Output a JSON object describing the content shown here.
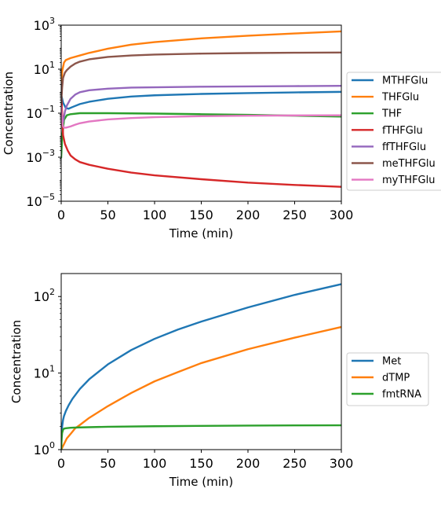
{
  "chart_data": [
    {
      "type": "line",
      "yscale": "log",
      "xlabel": "Time (min)",
      "ylabel": "Concentration",
      "xlim": [
        0,
        300
      ],
      "ylim_exp": [
        -5,
        3
      ],
      "xticks": [
        0,
        50,
        100,
        150,
        200,
        250,
        300
      ],
      "yticks_exp": [
        -5,
        -3,
        -1,
        1,
        3
      ],
      "grid": false,
      "legend_position": "outside-right",
      "series": [
        {
          "name": "MTHFGlu",
          "color": "#1f77b4",
          "x": [
            0,
            2,
            5,
            8,
            12,
            20,
            30,
            50,
            75,
            100,
            150,
            200,
            250,
            300
          ],
          "y": [
            0.7,
            0.3,
            0.17,
            0.16,
            0.19,
            0.26,
            0.33,
            0.45,
            0.57,
            0.65,
            0.75,
            0.82,
            0.88,
            0.93
          ]
        },
        {
          "name": "THFGlu",
          "color": "#ff7f0e",
          "x": [
            0,
            1,
            3,
            5,
            10,
            20,
            30,
            50,
            75,
            100,
            150,
            200,
            250,
            300
          ],
          "y": [
            1.0,
            8,
            20,
            26,
            32,
            42,
            55,
            85,
            130,
            170,
            250,
            330,
            420,
            520
          ]
        },
        {
          "name": "THF",
          "color": "#2ca02c",
          "x": [
            0,
            1,
            3,
            6,
            10,
            20,
            30,
            50,
            100,
            150,
            200,
            250,
            300
          ],
          "y": [
            0.001,
            0.008,
            0.05,
            0.08,
            0.09,
            0.1,
            0.1,
            0.1,
            0.096,
            0.09,
            0.084,
            0.077,
            0.07
          ]
        },
        {
          "name": "fTHFGlu",
          "color": "#d62728",
          "x": [
            0,
            1,
            2,
            4,
            7,
            10,
            15,
            20,
            30,
            50,
            75,
            100,
            150,
            200,
            250,
            300
          ],
          "y": [
            1.0,
            0.1,
            0.01,
            0.004,
            0.002,
            0.0012,
            0.0008,
            0.0006,
            0.00045,
            0.0003,
            0.0002,
            0.00015,
            0.0001,
            7e-05,
            5.5e-05,
            4.5e-05
          ]
        },
        {
          "name": "ffTHFGlu",
          "color": "#9467bd",
          "x": [
            0,
            2,
            4,
            6,
            10,
            15,
            20,
            30,
            50,
            75,
            100,
            150,
            200,
            250,
            300
          ],
          "y": [
            0.1,
            0.04,
            0.12,
            0.22,
            0.45,
            0.7,
            0.9,
            1.1,
            1.3,
            1.45,
            1.5,
            1.6,
            1.65,
            1.7,
            1.75
          ]
        },
        {
          "name": "meTHFGlu",
          "color": "#8c564b",
          "x": [
            0,
            1,
            2,
            4,
            6,
            10,
            15,
            20,
            30,
            50,
            75,
            100,
            150,
            200,
            250,
            300
          ],
          "y": [
            0.3,
            1.5,
            4,
            7,
            9,
            13,
            18,
            22,
            28,
            36,
            42,
            46,
            51,
            54,
            56,
            57
          ]
        },
        {
          "name": "myTHFGlu",
          "color": "#e377c2",
          "x": [
            0,
            1,
            2,
            3,
            5,
            10,
            15,
            20,
            30,
            50,
            75,
            100,
            150,
            200,
            250,
            300
          ],
          "y": [
            0.2,
            0.05,
            0.025,
            0.022,
            0.022,
            0.025,
            0.03,
            0.035,
            0.042,
            0.052,
            0.06,
            0.066,
            0.073,
            0.077,
            0.079,
            0.08
          ]
        }
      ]
    },
    {
      "type": "line",
      "yscale": "log",
      "xlabel": "Time (min)",
      "ylabel": "Concentration",
      "xlim": [
        0,
        300
      ],
      "ylim_exp": [
        0,
        2.3
      ],
      "xticks": [
        0,
        50,
        100,
        150,
        200,
        250,
        300
      ],
      "yticks_exp": [
        0,
        1,
        2
      ],
      "grid": false,
      "legend_position": "outside-right",
      "series": [
        {
          "name": "Met",
          "color": "#1f77b4",
          "x": [
            0,
            0.5,
            1,
            2,
            3,
            5,
            8,
            12,
            20,
            30,
            50,
            75,
            100,
            125,
            150,
            200,
            250,
            300
          ],
          "y": [
            1.0,
            1.6,
            2.0,
            2.45,
            2.75,
            3.2,
            3.8,
            4.6,
            6.2,
            8.3,
            13,
            20,
            28,
            37,
            47,
            72,
            105,
            145
          ]
        },
        {
          "name": "dTMP",
          "color": "#ff7f0e",
          "x": [
            0,
            3,
            6,
            10,
            15,
            20,
            30,
            50,
            75,
            100,
            125,
            150,
            200,
            250,
            300
          ],
          "y": [
            1.0,
            1.18,
            1.4,
            1.6,
            1.9,
            2.1,
            2.6,
            3.7,
            5.5,
            7.8,
            10.3,
            13.5,
            20.5,
            29,
            40
          ]
        },
        {
          "name": "fmtRNA",
          "color": "#2ca02c",
          "x": [
            0,
            0.5,
            1,
            2,
            3,
            5,
            10,
            20,
            50,
            100,
            150,
            200,
            250,
            300
          ],
          "y": [
            1.0,
            1.4,
            1.65,
            1.82,
            1.88,
            1.9,
            1.93,
            1.95,
            1.99,
            2.02,
            2.04,
            2.06,
            2.07,
            2.08
          ]
        }
      ]
    }
  ]
}
